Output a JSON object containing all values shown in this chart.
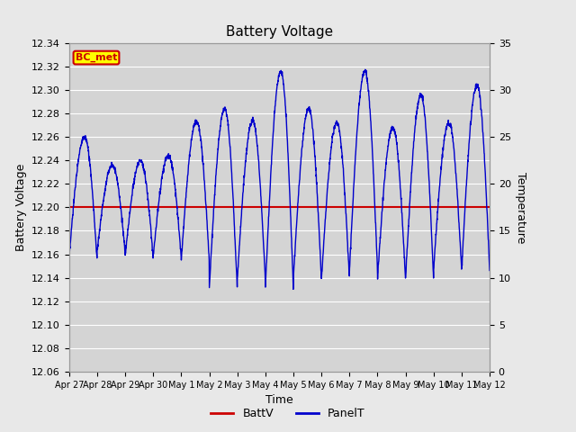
{
  "title": "Battery Voltage",
  "xlabel": "Time",
  "ylabel_left": "Battery Voltage",
  "ylabel_right": "Temperature",
  "ylim_left": [
    12.06,
    12.34
  ],
  "ylim_right": [
    0,
    35
  ],
  "yticks_left": [
    12.06,
    12.08,
    12.1,
    12.12,
    12.14,
    12.16,
    12.18,
    12.2,
    12.22,
    12.24,
    12.26,
    12.28,
    12.3,
    12.32,
    12.34
  ],
  "yticks_right": [
    0,
    5,
    10,
    15,
    20,
    25,
    30,
    35
  ],
  "battv_value": 12.2,
  "battv_color": "#cc0000",
  "panelt_color": "#0000cc",
  "background_color": "#e8e8e8",
  "plot_bg_color": "#d4d4d4",
  "grid_color": "#ffffff",
  "label_box_color": "#ffff00",
  "label_box_text": "BC_met",
  "label_box_text_color": "#cc0000",
  "legend_labels": [
    "BattV",
    "PanelT"
  ],
  "x_tick_labels": [
    "Apr 27",
    "Apr 28",
    "Apr 29",
    "Apr 30",
    "May 1",
    "May 2",
    "May 3",
    "May 4",
    "May 5",
    "May 6",
    "May 7",
    "May 8",
    "May 9",
    "May 10",
    "May 11",
    "May 12"
  ],
  "n_days": 15
}
